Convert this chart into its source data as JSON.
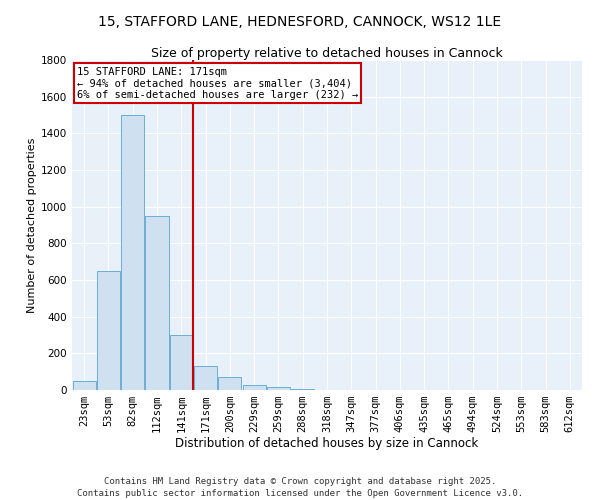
{
  "title": "15, STAFFORD LANE, HEDNESFORD, CANNOCK, WS12 1LE",
  "subtitle": "Size of property relative to detached houses in Cannock",
  "xlabel": "Distribution of detached houses by size in Cannock",
  "ylabel": "Number of detached properties",
  "bar_color": "#cfe0f0",
  "bar_edge_color": "#6aaed6",
  "background_color": "#e8f0fa",
  "grid_color": "white",
  "annotation_box_color": "#cc0000",
  "vline_color": "#cc0000",
  "categories": [
    "23sqm",
    "53sqm",
    "82sqm",
    "112sqm",
    "141sqm",
    "171sqm",
    "200sqm",
    "229sqm",
    "259sqm",
    "288sqm",
    "318sqm",
    "347sqm",
    "377sqm",
    "406sqm",
    "435sqm",
    "465sqm",
    "494sqm",
    "524sqm",
    "553sqm",
    "583sqm",
    "612sqm"
  ],
  "values": [
    50,
    650,
    1500,
    950,
    300,
    130,
    70,
    25,
    15,
    5,
    2,
    1,
    1,
    1,
    1,
    1,
    1,
    1,
    1,
    1,
    1
  ],
  "vline_pos": 5,
  "annotation_title": "15 STAFFORD LANE: 171sqm",
  "annotation_line1": "← 94% of detached houses are smaller (3,404)",
  "annotation_line2": "6% of semi-detached houses are larger (232) →",
  "ylim": [
    0,
    1800
  ],
  "yticks": [
    0,
    200,
    400,
    600,
    800,
    1000,
    1200,
    1400,
    1600,
    1800
  ],
  "footer_line1": "Contains HM Land Registry data © Crown copyright and database right 2025.",
  "footer_line2": "Contains public sector information licensed under the Open Government Licence v3.0.",
  "title_fontsize": 10,
  "subtitle_fontsize": 9,
  "xlabel_fontsize": 8.5,
  "ylabel_fontsize": 8,
  "tick_fontsize": 7.5,
  "annotation_fontsize": 7.5,
  "footer_fontsize": 6.5
}
